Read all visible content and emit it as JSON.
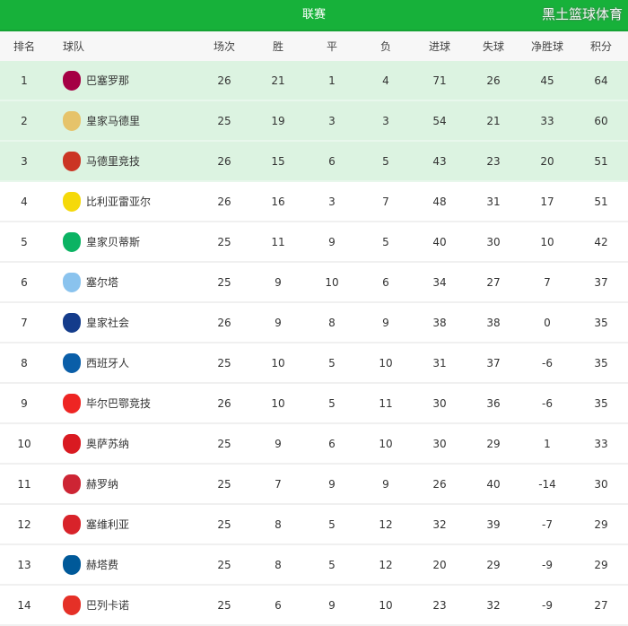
{
  "title": "联赛",
  "columns": [
    "排名",
    "球队",
    "场次",
    "胜",
    "平",
    "负",
    "进球",
    "失球",
    "净胜球",
    "积分"
  ],
  "highlight_color": "#dcf3e1",
  "header_color": "#17b13a",
  "rows": [
    {
      "rank": "1",
      "team": "巴塞罗那",
      "played": "26",
      "won": "21",
      "drawn": "1",
      "lost": "4",
      "gf": "71",
      "ga": "26",
      "gd": "45",
      "pts": "64",
      "logo": "#a50044"
    },
    {
      "rank": "2",
      "team": "皇家马德里",
      "played": "25",
      "won": "19",
      "drawn": "3",
      "lost": "3",
      "gf": "54",
      "ga": "21",
      "gd": "33",
      "pts": "60",
      "logo": "#e6c36a"
    },
    {
      "rank": "3",
      "team": "马德里竞技",
      "played": "26",
      "won": "15",
      "drawn": "6",
      "lost": "5",
      "gf": "43",
      "ga": "23",
      "gd": "20",
      "pts": "51",
      "logo": "#cb3524"
    },
    {
      "rank": "4",
      "team": "比利亚雷亚尔",
      "played": "26",
      "won": "16",
      "drawn": "3",
      "lost": "7",
      "gf": "48",
      "ga": "31",
      "gd": "17",
      "pts": "51",
      "logo": "#f5d90a"
    },
    {
      "rank": "5",
      "team": "皇家贝蒂斯",
      "played": "25",
      "won": "11",
      "drawn": "9",
      "lost": "5",
      "gf": "40",
      "ga": "30",
      "gd": "10",
      "pts": "42",
      "logo": "#0bb363"
    },
    {
      "rank": "6",
      "team": "塞尔塔",
      "played": "25",
      "won": "9",
      "drawn": "10",
      "lost": "6",
      "gf": "34",
      "ga": "27",
      "gd": "7",
      "pts": "37",
      "logo": "#8ac3ee"
    },
    {
      "rank": "7",
      "team": "皇家社会",
      "played": "26",
      "won": "9",
      "drawn": "8",
      "lost": "9",
      "gf": "38",
      "ga": "38",
      "gd": "0",
      "pts": "35",
      "logo": "#143c8b"
    },
    {
      "rank": "8",
      "team": "西班牙人",
      "played": "25",
      "won": "10",
      "drawn": "5",
      "lost": "10",
      "gf": "31",
      "ga": "37",
      "gd": "-6",
      "pts": "35",
      "logo": "#0a5ea8"
    },
    {
      "rank": "9",
      "team": "毕尔巴鄂竞技",
      "played": "26",
      "won": "10",
      "drawn": "5",
      "lost": "11",
      "gf": "30",
      "ga": "36",
      "gd": "-6",
      "pts": "35",
      "logo": "#ee2523"
    },
    {
      "rank": "10",
      "team": "奥萨苏纳",
      "played": "25",
      "won": "9",
      "drawn": "6",
      "lost": "10",
      "gf": "30",
      "ga": "29",
      "gd": "1",
      "pts": "33",
      "logo": "#d91a21"
    },
    {
      "rank": "11",
      "team": "赫罗纳",
      "played": "25",
      "won": "7",
      "drawn": "9",
      "lost": "9",
      "gf": "26",
      "ga": "40",
      "gd": "-14",
      "pts": "30",
      "logo": "#cd2534"
    },
    {
      "rank": "12",
      "team": "塞维利亚",
      "played": "25",
      "won": "8",
      "drawn": "5",
      "lost": "12",
      "gf": "32",
      "ga": "39",
      "gd": "-7",
      "pts": "29",
      "logo": "#d8232a"
    },
    {
      "rank": "13",
      "team": "赫塔费",
      "played": "25",
      "won": "8",
      "drawn": "5",
      "lost": "12",
      "gf": "20",
      "ga": "29",
      "gd": "-9",
      "pts": "29",
      "logo": "#005999"
    },
    {
      "rank": "14",
      "team": "巴列卡诺",
      "played": "25",
      "won": "6",
      "drawn": "9",
      "lost": "10",
      "gf": "23",
      "ga": "32",
      "gd": "-9",
      "pts": "27",
      "logo": "#e53027"
    }
  ],
  "watermark": "黑土篮球体育"
}
